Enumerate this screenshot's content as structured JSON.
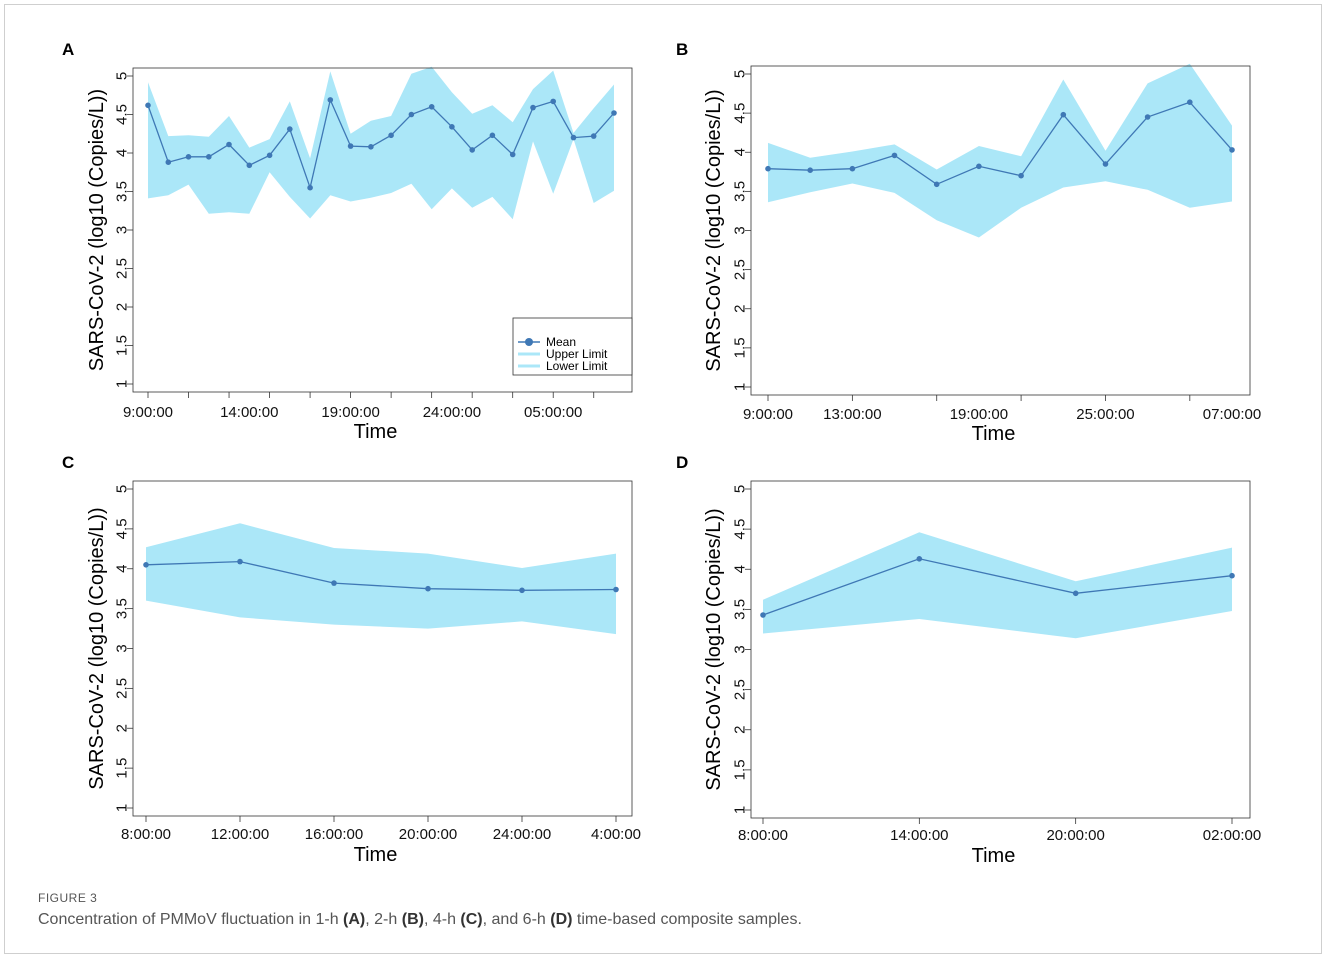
{
  "figure_label": "FIGURE 3",
  "caption": {
    "t0": "Concentration of PMMoV fluctuation in 1-h ",
    "a": "(A)",
    "t1": ", 2-h ",
    "b": "(B)",
    "t2": ", 4-h ",
    "c": "(C)",
    "t3": ", and 6-h ",
    "d": "(D)",
    "t4": " time-based composite samples."
  },
  "colors": {
    "band": "#abe7f8",
    "line": "#3f78b5",
    "axis": "#333333"
  },
  "chart_data": [
    {
      "panel": "A",
      "type": "line",
      "xlabel": "Time",
      "ylabel": "SARS-CoV-2 (log10 (Copies/L))",
      "ylim": [
        1,
        5
      ],
      "yticks": [
        "1",
        "1.5",
        "2",
        "2.5",
        "3",
        "3.5",
        "4",
        "4.5",
        "5"
      ],
      "x_tick_labels": [
        {
          "i": 0,
          "label": "9:00:00"
        },
        {
          "i": 5,
          "label": "14:00:00"
        },
        {
          "i": 10,
          "label": "19:00:00"
        },
        {
          "i": 15,
          "label": "24:00:00"
        },
        {
          "i": 20,
          "label": "05:00:00"
        }
      ],
      "x_ticks_every": 2,
      "mean": [
        4.62,
        3.88,
        3.95,
        3.95,
        4.11,
        3.84,
        3.97,
        4.31,
        3.55,
        4.69,
        4.09,
        4.08,
        4.23,
        4.5,
        4.6,
        4.34,
        4.04,
        4.23,
        3.98,
        4.59,
        4.67,
        4.2,
        4.22,
        4.52
      ],
      "upper": [
        4.92,
        4.22,
        4.23,
        4.21,
        4.48,
        4.07,
        4.18,
        4.67,
        3.93,
        5.06,
        4.25,
        4.42,
        4.48,
        5.03,
        5.12,
        4.79,
        4.51,
        4.62,
        4.4,
        4.83,
        5.07,
        4.26,
        4.58,
        4.89
      ],
      "lower": [
        3.41,
        3.45,
        3.59,
        3.21,
        3.23,
        3.21,
        3.75,
        3.43,
        3.15,
        3.45,
        3.37,
        3.42,
        3.48,
        3.6,
        3.27,
        3.54,
        3.29,
        3.43,
        3.14,
        4.15,
        3.47,
        4.18,
        3.35,
        3.51
      ],
      "legend": {
        "position": "bottom-right",
        "entries": [
          "Mean",
          "Upper Limit",
          "Lower Limit"
        ]
      }
    },
    {
      "panel": "B",
      "type": "line",
      "xlabel": "Time",
      "ylabel": "SARS-CoV-2 (log10 (Copies/L))",
      "ylim": [
        1,
        5
      ],
      "yticks": [
        "1",
        "1.5",
        "2",
        "2.5",
        "3",
        "3.5",
        "4",
        "4.5",
        "5"
      ],
      "x_tick_labels": [
        {
          "i": 0,
          "label": "9:00:00"
        },
        {
          "i": 2,
          "label": "13:00:00"
        },
        {
          "i": 5,
          "label": "19:00:00"
        },
        {
          "i": 8,
          "label": "25:00:00"
        },
        {
          "i": 11,
          "label": "07:00:00"
        }
      ],
      "x_ticks_every": 2,
      "mean": [
        3.79,
        3.77,
        3.79,
        3.96,
        3.59,
        3.82,
        3.7,
        4.48,
        3.85,
        4.45,
        4.64,
        4.03
      ],
      "upper": [
        4.12,
        3.93,
        4.01,
        4.1,
        3.78,
        4.08,
        3.95,
        4.93,
        4.02,
        4.88,
        5.13,
        4.34
      ],
      "lower": [
        3.36,
        3.49,
        3.6,
        3.48,
        3.13,
        2.91,
        3.29,
        3.55,
        3.63,
        3.52,
        3.29,
        3.37
      ]
    },
    {
      "panel": "C",
      "type": "line",
      "xlabel": "Time",
      "ylabel": "SARS-CoV-2 (log10 (Copies/L))",
      "ylim": [
        1,
        5
      ],
      "yticks": [
        "1",
        "1.5",
        "2",
        "2.5",
        "3",
        "3.5",
        "4",
        "4.5",
        "5"
      ],
      "x_tick_labels": [
        {
          "i": 0,
          "label": "8:00:00"
        },
        {
          "i": 1,
          "label": "12:00:00"
        },
        {
          "i": 2,
          "label": "16:00:00"
        },
        {
          "i": 3,
          "label": "20:00:00"
        },
        {
          "i": 4,
          "label": "24:00:00"
        },
        {
          "i": 5,
          "label": "4:00:00"
        }
      ],
      "x_ticks_every": 1,
      "mean": [
        4.05,
        4.09,
        3.82,
        3.75,
        3.73,
        3.74
      ],
      "upper": [
        4.27,
        4.57,
        4.26,
        4.19,
        4.01,
        4.19
      ],
      "lower": [
        3.6,
        3.39,
        3.3,
        3.25,
        3.34,
        3.18
      ]
    },
    {
      "panel": "D",
      "type": "line",
      "xlabel": "Time",
      "ylabel": "SARS-CoV-2 (log10 (Copies/L))",
      "ylim": [
        1,
        5
      ],
      "yticks": [
        "1",
        "1.5",
        "2",
        "2.5",
        "3",
        "3.5",
        "4",
        "4.5",
        "5"
      ],
      "x_tick_labels": [
        {
          "i": 0,
          "label": "8:00:00"
        },
        {
          "i": 1,
          "label": "14:00:00"
        },
        {
          "i": 2,
          "label": "20:00:00"
        },
        {
          "i": 3,
          "label": "02:00:00"
        }
      ],
      "x_ticks_every": 1,
      "mean": [
        3.43,
        4.13,
        3.7,
        3.92
      ],
      "upper": [
        3.62,
        4.46,
        3.85,
        4.27
      ],
      "lower": [
        3.2,
        3.38,
        3.14,
        3.48
      ]
    }
  ]
}
